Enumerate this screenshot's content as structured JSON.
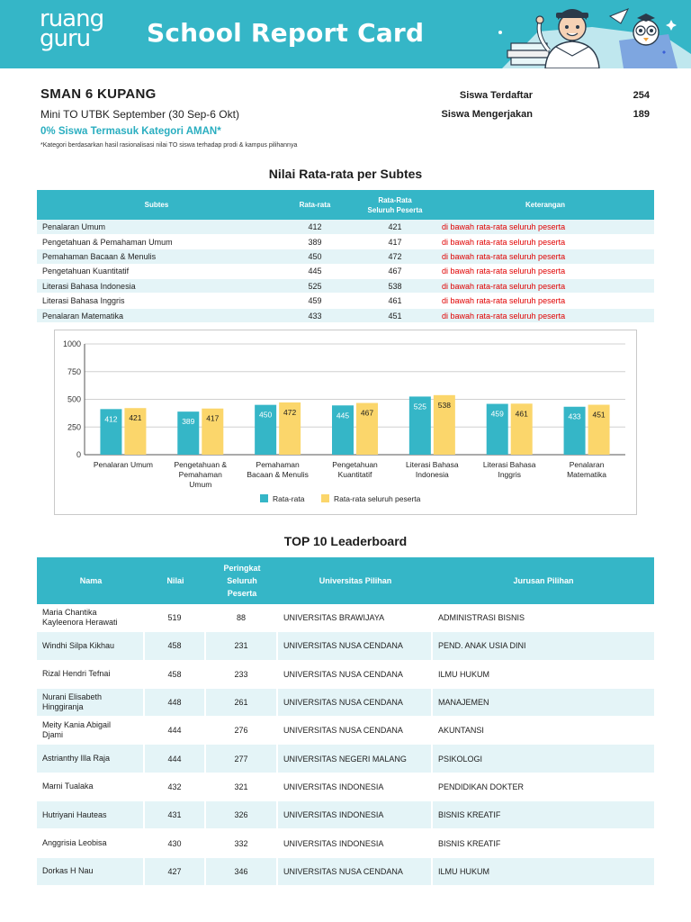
{
  "header": {
    "logo_line1": "ruang",
    "logo_line2": "guru",
    "title": "School Report Card"
  },
  "school": {
    "name": "SMAN 6 KUPANG",
    "event": "Mini TO UTBK September (30 Sep-6 Okt)",
    "category": "0% Siswa Termasuk Kategori AMAN*",
    "note": "*Kategori berdasarkan hasil rasionalisasi nilai TO siswa terhadap prodi & kampus pilihannya",
    "registered_label": "Siswa Terdaftar",
    "registered_value": "254",
    "working_label": "Siswa Mengerjakan",
    "working_value": "189"
  },
  "subtest_section": {
    "title": "Nilai Rata-rata per Subtes",
    "headers": {
      "subtes": "Subtes",
      "rata": "Rata-rata",
      "seluruh_line1": "Rata-Rata",
      "seluruh_line2": "Seluruh Peserta",
      "keterangan": "Keterangan"
    },
    "rows": [
      {
        "name": "Penalaran Umum",
        "rata": "412",
        "seluruh": "421",
        "ket": "di bawah rata-rata seluruh peserta"
      },
      {
        "name": "Pengetahuan & Pemahaman Umum",
        "rata": "389",
        "seluruh": "417",
        "ket": "di bawah rata-rata seluruh peserta"
      },
      {
        "name": "Pemahaman Bacaan & Menulis",
        "rata": "450",
        "seluruh": "472",
        "ket": "di bawah rata-rata seluruh peserta"
      },
      {
        "name": "Pengetahuan Kuantitatif",
        "rata": "445",
        "seluruh": "467",
        "ket": "di bawah rata-rata seluruh peserta"
      },
      {
        "name": "Literasi Bahasa Indonesia",
        "rata": "525",
        "seluruh": "538",
        "ket": "di bawah rata-rata seluruh peserta"
      },
      {
        "name": "Literasi Bahasa Inggris",
        "rata": "459",
        "seluruh": "461",
        "ket": "di bawah rata-rata seluruh peserta"
      },
      {
        "name": "Penalaran Matematika",
        "rata": "433",
        "seluruh": "451",
        "ket": "di bawah rata-rata seluruh peserta"
      }
    ]
  },
  "chart_data": {
    "type": "bar",
    "categories": [
      [
        "Penalaran Umum"
      ],
      [
        "Pengetahuan &",
        "Pemahaman",
        "Umum"
      ],
      [
        "Pemahaman",
        "Bacaan & Menulis"
      ],
      [
        "Pengetahuan",
        "Kuantitatif"
      ],
      [
        "Literasi Bahasa",
        "Indonesia"
      ],
      [
        "Literasi Bahasa",
        "Inggris"
      ],
      [
        "Penalaran",
        "Matematika"
      ]
    ],
    "series": [
      {
        "name": "Rata-rata",
        "color": "#35b6c7",
        "values": [
          412,
          389,
          450,
          445,
          525,
          459,
          433
        ]
      },
      {
        "name": "Rata-rata seluruh peserta",
        "color": "#fbd66b",
        "values": [
          421,
          417,
          472,
          467,
          538,
          461,
          451
        ]
      }
    ],
    "yticks": [
      0,
      250,
      500,
      750,
      1000
    ],
    "ylim": [
      0,
      1000
    ],
    "grid": true,
    "legend": "bottom",
    "data_labels": true
  },
  "leaderboard": {
    "title": "TOP 10 Leaderboard",
    "headers": {
      "nama": "Nama",
      "nilai": "Nilai",
      "peringkat_l1": "Peringkat",
      "peringkat_l2": "Seluruh",
      "peringkat_l3": "Peserta",
      "universitas": "Universitas Pilihan",
      "jurusan": "Jurusan Pilihan"
    },
    "rows": [
      {
        "name1": "Maria Chantika",
        "name2": "Kayleenora Herawati",
        "nilai": "519",
        "peringkat": "88",
        "univ": "UNIVERSITAS BRAWIJAYA",
        "jurusan": "ADMINISTRASI BISNIS"
      },
      {
        "name1": "Windhi Silpa Kikhau",
        "name2": "",
        "nilai": "458",
        "peringkat": "231",
        "univ": "UNIVERSITAS NUSA CENDANA",
        "jurusan": "PEND. ANAK USIA DINI"
      },
      {
        "name1": "Rizal Hendri Tefnai",
        "name2": "",
        "nilai": "458",
        "peringkat": "233",
        "univ": "UNIVERSITAS NUSA CENDANA",
        "jurusan": "ILMU HUKUM"
      },
      {
        "name1": "Nurani Elisabeth",
        "name2": "Hinggiranja",
        "nilai": "448",
        "peringkat": "261",
        "univ": "UNIVERSITAS NUSA CENDANA",
        "jurusan": "MANAJEMEN"
      },
      {
        "name1": "Meity Kania Abigail",
        "name2": "Djami",
        "nilai": "444",
        "peringkat": "276",
        "univ": "UNIVERSITAS NUSA CENDANA",
        "jurusan": "AKUNTANSI"
      },
      {
        "name1": "Astrianthy Illa Raja",
        "name2": "",
        "nilai": "444",
        "peringkat": "277",
        "univ": "UNIVERSITAS NEGERI MALANG",
        "jurusan": "PSIKOLOGI"
      },
      {
        "name1": "Marni Tualaka",
        "name2": "",
        "nilai": "432",
        "peringkat": "321",
        "univ": "UNIVERSITAS INDONESIA",
        "jurusan": "PENDIDIKAN DOKTER"
      },
      {
        "name1": "Hutriyani Hauteas",
        "name2": "",
        "nilai": "431",
        "peringkat": "326",
        "univ": "UNIVERSITAS INDONESIA",
        "jurusan": "BISNIS KREATIF"
      },
      {
        "name1": "Anggrisia Leobisa",
        "name2": "",
        "nilai": "430",
        "peringkat": "332",
        "univ": "UNIVERSITAS INDONESIA",
        "jurusan": "BISNIS KREATIF"
      },
      {
        "name1": "Dorkas H Nau",
        "name2": "",
        "nilai": "427",
        "peringkat": "346",
        "univ": "UNIVERSITAS NUSA CENDANA",
        "jurusan": "ILMU HUKUM"
      }
    ]
  },
  "icons": {
    "mascot": "mascot-illustration-icon"
  }
}
